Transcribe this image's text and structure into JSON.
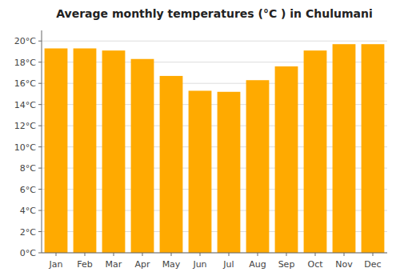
{
  "chart_data": {
    "type": "bar",
    "title": "Average monthly temperatures (°C ) in Chulumani",
    "categories": [
      "Jan",
      "Feb",
      "Mar",
      "Apr",
      "May",
      "Jun",
      "Jul",
      "Aug",
      "Sep",
      "Oct",
      "Nov",
      "Dec"
    ],
    "values": [
      19.3,
      19.3,
      19.1,
      18.3,
      16.7,
      15.3,
      15.2,
      16.3,
      17.6,
      19.1,
      19.7,
      19.7
    ],
    "color": "#FFAA00",
    "ylim": [
      0,
      21
    ],
    "yticks": [
      {
        "value": 0,
        "label": "0°C"
      },
      {
        "value": 2,
        "label": "2°C"
      },
      {
        "value": 4,
        "label": "4°C"
      },
      {
        "value": 6,
        "label": "6°C"
      },
      {
        "value": 8,
        "label": "8°C"
      },
      {
        "value": 10,
        "label": "10°C"
      },
      {
        "value": 12,
        "label": "12°C"
      },
      {
        "value": 14,
        "label": "14°C"
      },
      {
        "value": 16,
        "label": "16°C"
      },
      {
        "value": 18,
        "label": "18°C"
      },
      {
        "value": 20,
        "label": "20°C"
      }
    ],
    "grid": true
  }
}
